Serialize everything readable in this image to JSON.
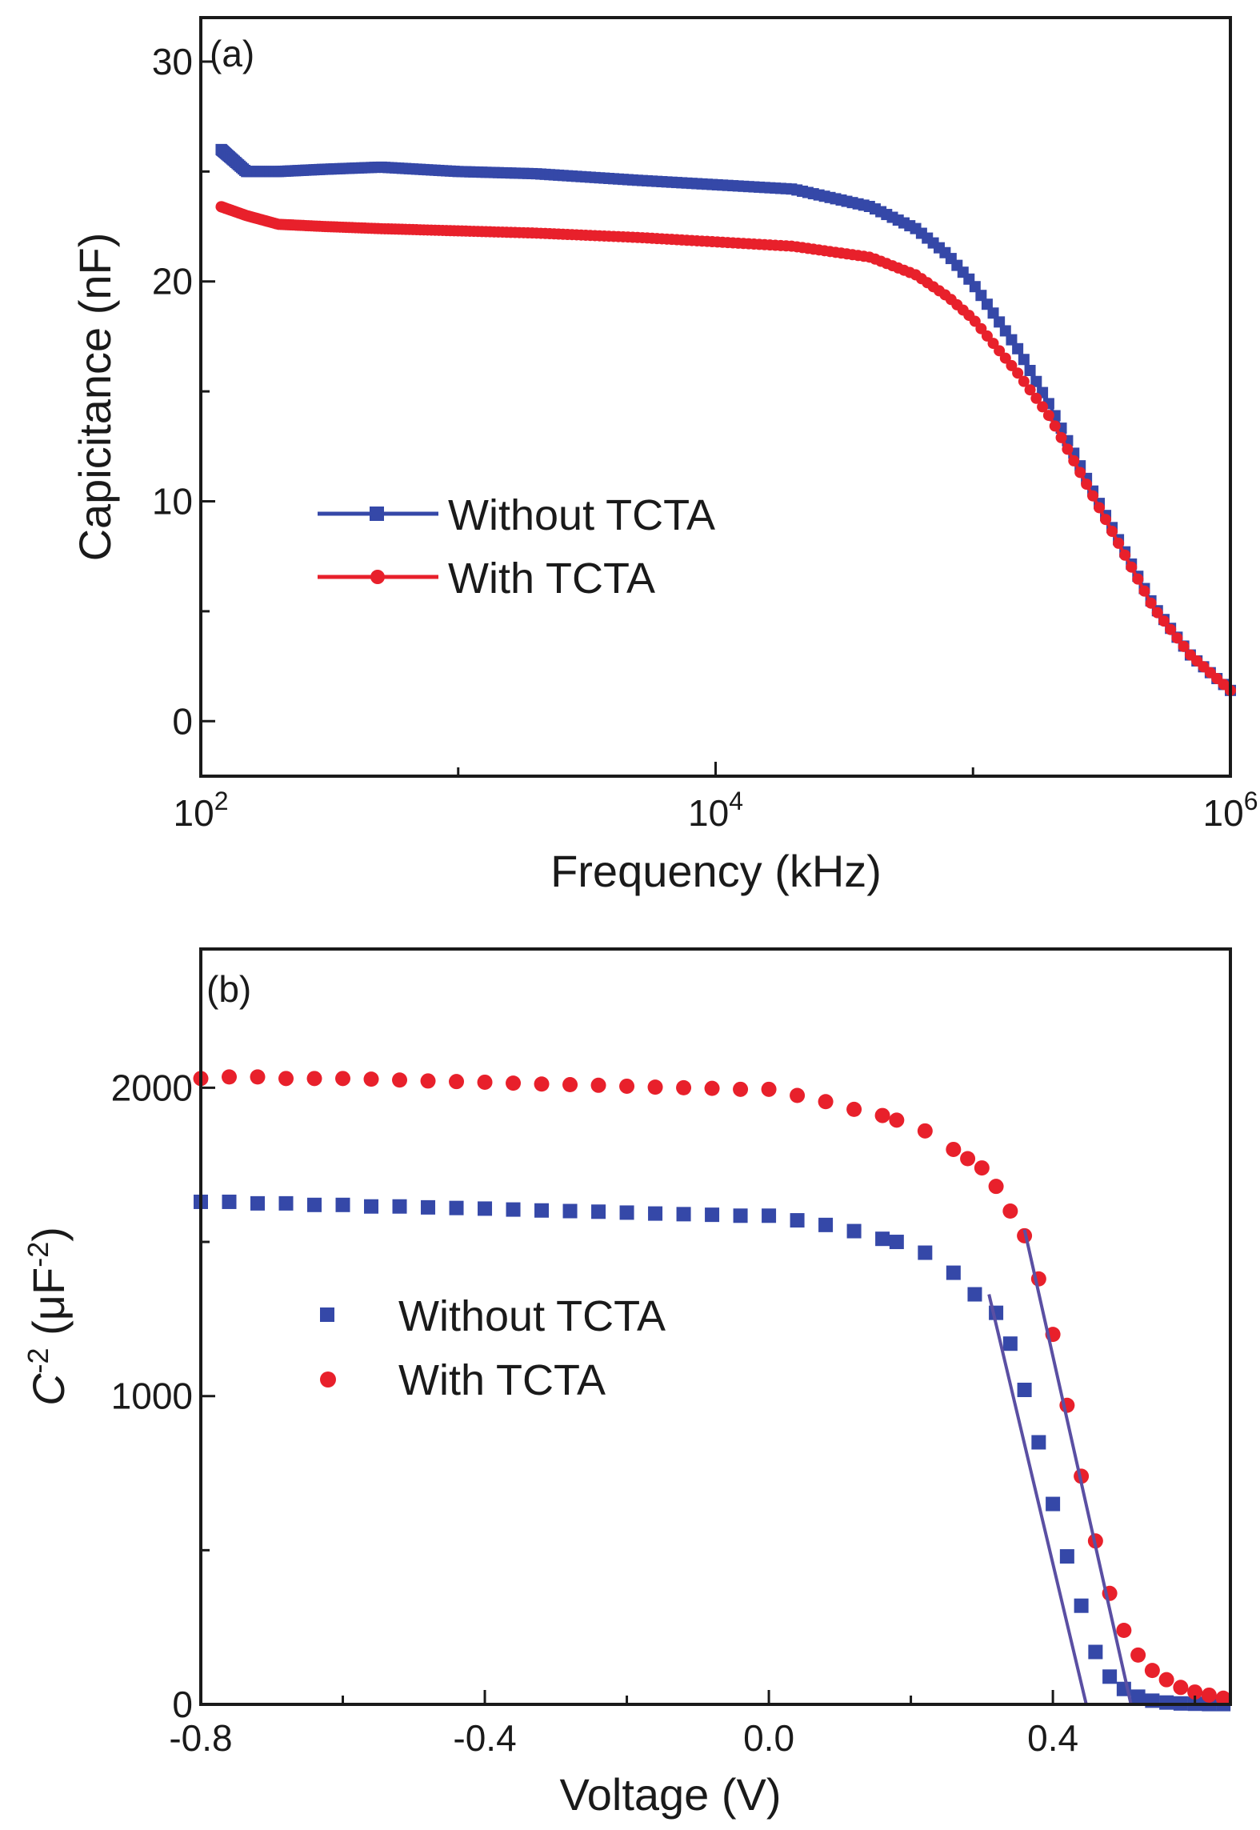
{
  "colors": {
    "blue": "#3548a8",
    "red": "#e8202b",
    "fitline": "#5a4fa3",
    "axis": "#1a1a1a"
  },
  "chart_data": [
    {
      "panel": "(a)",
      "type": "line",
      "xscale": "log",
      "xlabel": "Frequency (kHz)",
      "ylabel": "Capicitance (nF)",
      "xlim": [
        100,
        1000000
      ],
      "ylim": [
        -2.5,
        32
      ],
      "xticks": [
        {
          "value": 100,
          "base": "10",
          "exp": "2"
        },
        {
          "value": 10000,
          "base": "10",
          "exp": "4"
        },
        {
          "value": 1000000,
          "base": "10",
          "exp": "6"
        }
      ],
      "yticks": [
        {
          "value": 0,
          "label": "0"
        },
        {
          "value": 10,
          "label": "10"
        },
        {
          "value": 20,
          "label": "20"
        },
        {
          "value": 30,
          "label": "30"
        }
      ],
      "legend": "center-left",
      "series": [
        {
          "name": "Without TCTA",
          "color": "#3548a8",
          "marker": "square",
          "x": [
            120,
            150,
            200,
            300,
            500,
            1000,
            2000,
            5000,
            10000,
            20000,
            40000,
            60000,
            80000,
            100000,
            150000,
            200000,
            300000,
            500000,
            700000,
            1000000
          ],
          "y": [
            26.0,
            25.0,
            25.0,
            25.1,
            25.2,
            25.0,
            24.9,
            24.6,
            24.4,
            24.2,
            23.4,
            22.4,
            21.2,
            19.9,
            16.9,
            14.3,
            10.2,
            5.3,
            3.0,
            1.4
          ]
        },
        {
          "name": "With TCTA",
          "color": "#e8202b",
          "marker": "circle",
          "x": [
            120,
            150,
            200,
            300,
            500,
            1000,
            2000,
            5000,
            10000,
            20000,
            40000,
            60000,
            80000,
            100000,
            150000,
            200000,
            300000,
            500000,
            700000,
            1000000
          ],
          "y": [
            23.4,
            23.0,
            22.6,
            22.5,
            22.4,
            22.3,
            22.2,
            22.0,
            21.8,
            21.6,
            21.1,
            20.3,
            19.3,
            18.3,
            15.8,
            13.8,
            10.0,
            5.2,
            3.0,
            1.4
          ]
        }
      ]
    },
    {
      "panel": "(b)",
      "type": "scatter",
      "xlabel": "Voltage (V)",
      "ylabel": {
        "base": "C",
        "sup1": "-2",
        "unit_open": " (μF",
        "sup2": "-2",
        "unit_close": ")"
      },
      "xlim": [
        -0.8,
        0.65
      ],
      "ylim": [
        0,
        2450
      ],
      "xticks": [
        {
          "value": -0.8,
          "label": "-0.8"
        },
        {
          "value": -0.4,
          "label": "-0.4"
        },
        {
          "value": 0.0,
          "label": "0.0"
        },
        {
          "value": 0.4,
          "label": "0.4"
        }
      ],
      "yticks": [
        {
          "value": 0,
          "label": "0"
        },
        {
          "value": 1000,
          "label": "1000"
        },
        {
          "value": 2000,
          "label": "2000"
        }
      ],
      "legend": "center-left",
      "series": [
        {
          "name": "Without TCTA",
          "color": "#3548a8",
          "marker": "square",
          "x": [
            -0.8,
            -0.76,
            -0.72,
            -0.68,
            -0.64,
            -0.6,
            -0.56,
            -0.52,
            -0.48,
            -0.44,
            -0.4,
            -0.36,
            -0.32,
            -0.28,
            -0.24,
            -0.2,
            -0.16,
            -0.12,
            -0.08,
            -0.04,
            0.0,
            0.04,
            0.08,
            0.12,
            0.16,
            0.18,
            0.22,
            0.26,
            0.29,
            0.32,
            0.34,
            0.36,
            0.38,
            0.4,
            0.42,
            0.44,
            0.46,
            0.48,
            0.5,
            0.52,
            0.54,
            0.56,
            0.58,
            0.6,
            0.62,
            0.64
          ],
          "y": [
            1630,
            1630,
            1625,
            1625,
            1620,
            1620,
            1615,
            1615,
            1612,
            1610,
            1608,
            1605,
            1602,
            1600,
            1598,
            1595,
            1592,
            1590,
            1588,
            1585,
            1585,
            1570,
            1555,
            1535,
            1510,
            1500,
            1465,
            1400,
            1330,
            1270,
            1170,
            1020,
            850,
            650,
            480,
            320,
            170,
            90,
            50,
            25,
            12,
            6,
            3,
            2,
            1,
            1
          ]
        },
        {
          "name": "With TCTA",
          "color": "#e8202b",
          "marker": "circle",
          "x": [
            -0.8,
            -0.76,
            -0.72,
            -0.68,
            -0.64,
            -0.6,
            -0.56,
            -0.52,
            -0.48,
            -0.44,
            -0.4,
            -0.36,
            -0.32,
            -0.28,
            -0.24,
            -0.2,
            -0.16,
            -0.12,
            -0.08,
            -0.04,
            0.0,
            0.04,
            0.08,
            0.12,
            0.16,
            0.18,
            0.22,
            0.26,
            0.28,
            0.3,
            0.32,
            0.34,
            0.36,
            0.38,
            0.4,
            0.42,
            0.44,
            0.46,
            0.48,
            0.5,
            0.52,
            0.54,
            0.56,
            0.58,
            0.6,
            0.62,
            0.64
          ],
          "y": [
            2030,
            2035,
            2035,
            2030,
            2030,
            2030,
            2028,
            2025,
            2022,
            2020,
            2018,
            2015,
            2012,
            2010,
            2008,
            2005,
            2002,
            2000,
            1998,
            1995,
            1995,
            1975,
            1955,
            1930,
            1910,
            1895,
            1860,
            1800,
            1770,
            1740,
            1680,
            1600,
            1520,
            1380,
            1200,
            970,
            740,
            530,
            360,
            240,
            160,
            110,
            80,
            55,
            40,
            30,
            20
          ]
        }
      ],
      "fit_lines": [
        {
          "series": "Without TCTA",
          "x": [
            0.31,
            0.447
          ],
          "y": [
            1330,
            0
          ]
        },
        {
          "series": "With TCTA",
          "x": [
            0.36,
            0.51
          ],
          "y": [
            1540,
            0
          ]
        }
      ]
    }
  ]
}
